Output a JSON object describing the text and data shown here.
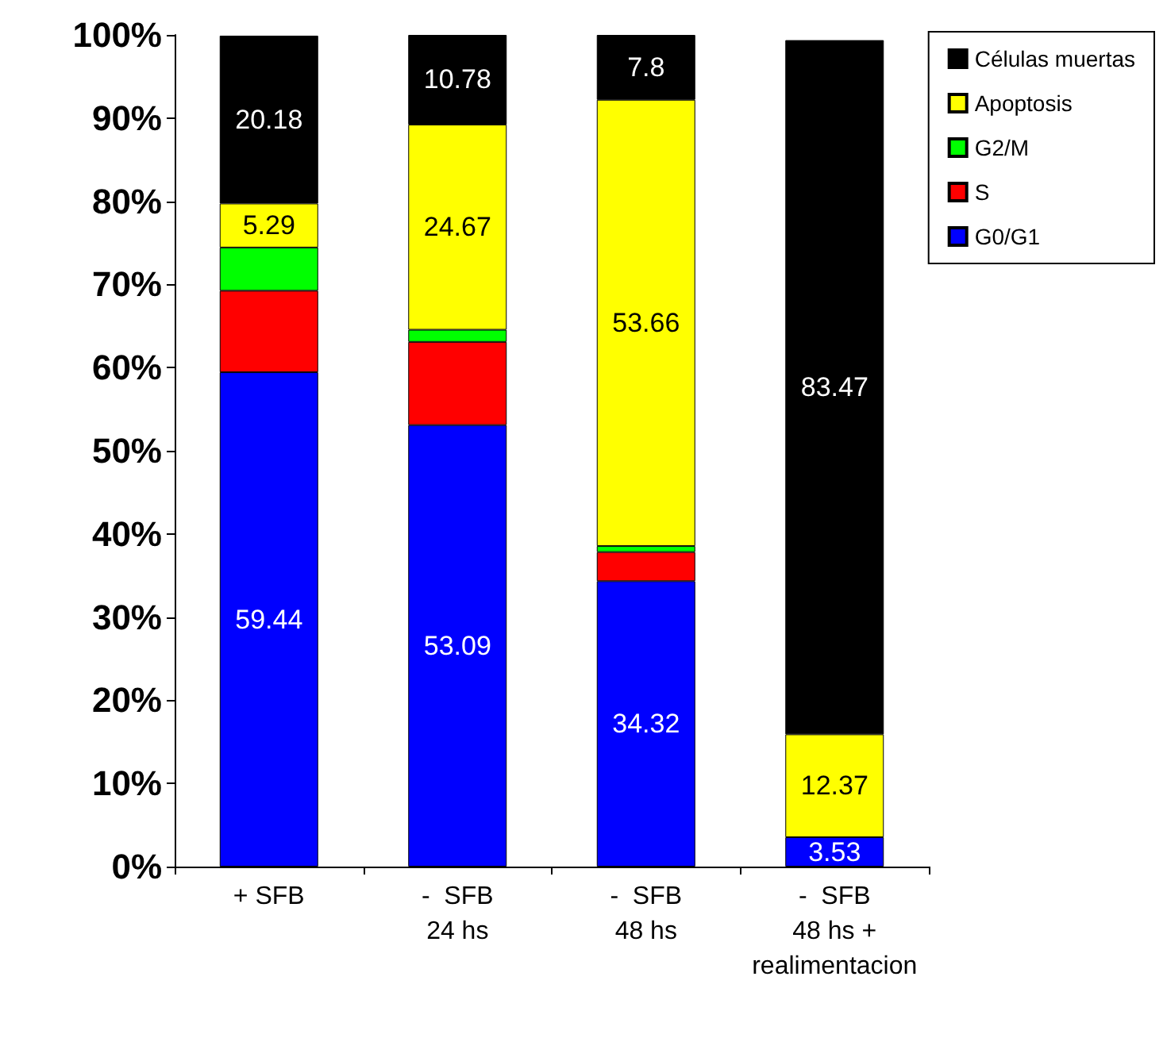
{
  "chart_data": {
    "type": "bar",
    "stacked": true,
    "categories": [
      "+ SFB",
      "-  SFB\n24 hs",
      "-  SFB\n48 hs",
      "-  SFB\n48 hs +\nrealimentacion"
    ],
    "series": [
      {
        "name": "G0/G1",
        "color": "#0000ff",
        "values": [
          59.44,
          53.09,
          34.32,
          3.53
        ],
        "value_labels": [
          "59.44",
          "53.09",
          "34.32",
          "3.53"
        ]
      },
      {
        "name": "S",
        "color": "#ff0000",
        "values": [
          9.8,
          10.0,
          3.5,
          null
        ],
        "value_labels": [
          null,
          null,
          null,
          null
        ]
      },
      {
        "name": "G2/M",
        "color": "#00ff00",
        "values": [
          5.2,
          1.46,
          0.72,
          null
        ],
        "value_labels": [
          null,
          null,
          null,
          null
        ]
      },
      {
        "name": "Apoptosis",
        "color": "#ffff00",
        "values": [
          5.29,
          24.67,
          53.66,
          12.37
        ],
        "value_labels": [
          "5.29",
          "24.67",
          "53.66",
          "12.37"
        ]
      },
      {
        "name": "Células muertas",
        "color": "#000000",
        "values": [
          20.18,
          10.78,
          7.8,
          83.47
        ],
        "value_labels": [
          "20.18",
          "10.78",
          "7.8",
          "83.47"
        ]
      }
    ],
    "ylim": [
      0,
      100
    ],
    "yticks": [
      {
        "value": 0,
        "label": "0%"
      },
      {
        "value": 10,
        "label": "10%"
      },
      {
        "value": 20,
        "label": "20%"
      },
      {
        "value": 30,
        "label": "30%"
      },
      {
        "value": 40,
        "label": "40%"
      },
      {
        "value": 50,
        "label": "50%"
      },
      {
        "value": 60,
        "label": "60%"
      },
      {
        "value": 70,
        "label": "70%"
      },
      {
        "value": 80,
        "label": "80%"
      },
      {
        "value": 90,
        "label": "90%"
      },
      {
        "value": 100,
        "label": "100%"
      }
    ],
    "grid": false,
    "legend": "top right"
  }
}
